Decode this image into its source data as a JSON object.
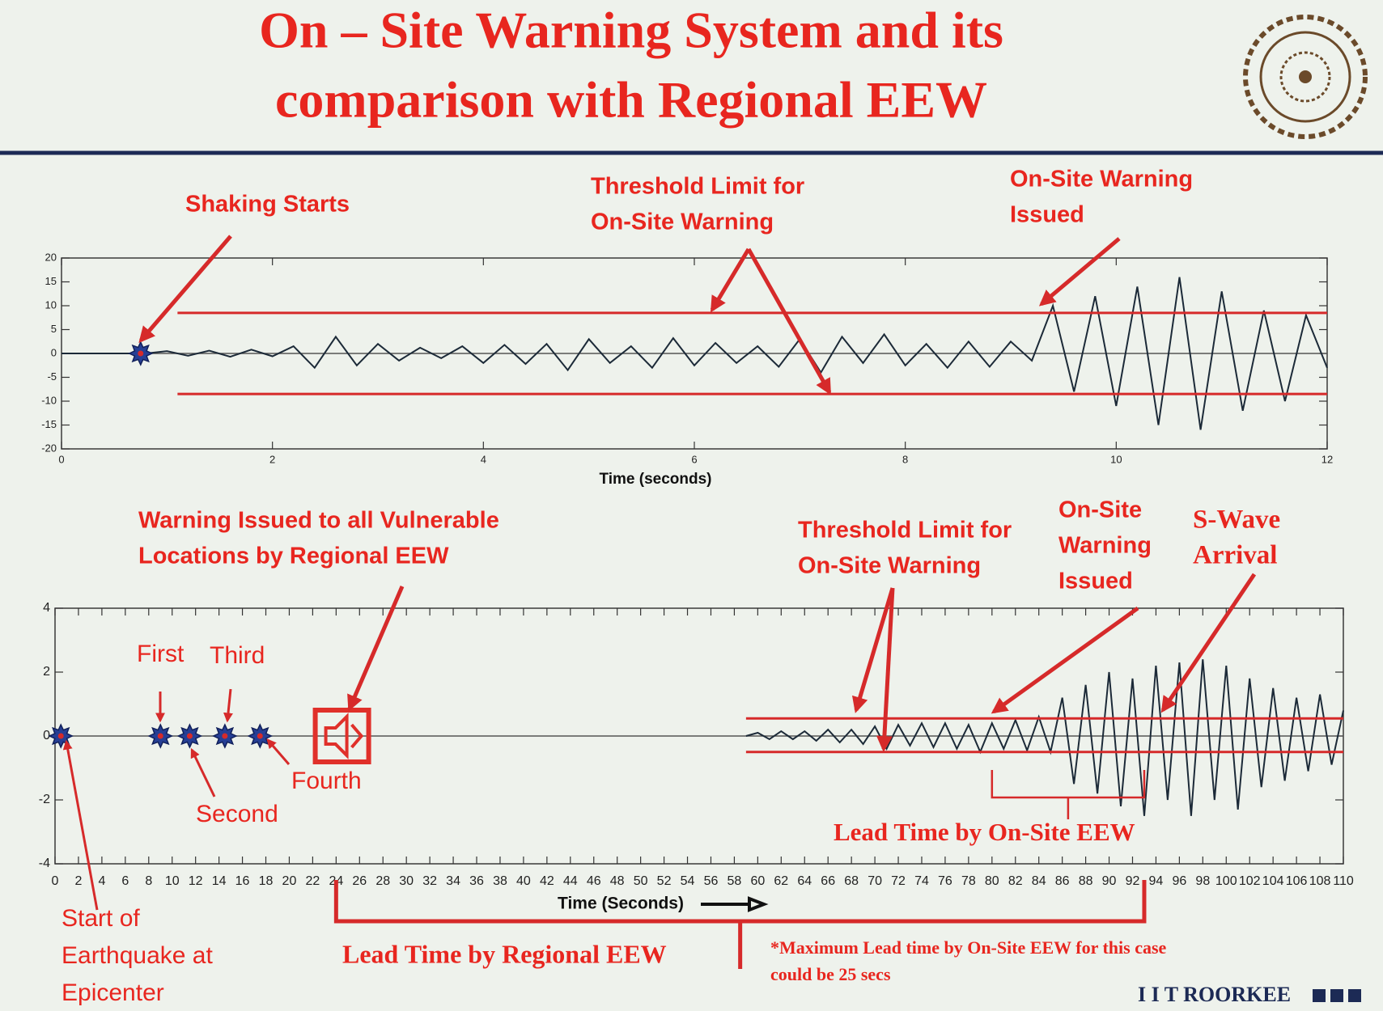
{
  "header": {
    "title": [
      "On – Site Warning System and its",
      "comparison with Regional EEW"
    ]
  },
  "chart_data": [
    {
      "type": "line",
      "xlabel": "Time (seconds)",
      "xlim": [
        0,
        12
      ],
      "xticks": [
        0,
        2,
        4,
        6,
        8,
        10,
        12
      ],
      "ylim": [
        -20,
        20
      ],
      "yticks": [
        -20,
        -15,
        -10,
        -5,
        0,
        5,
        10,
        15,
        20
      ],
      "color": "#1c2a38",
      "threshold_color": "#d62a2a",
      "thresholds": [
        8.5,
        -8.5
      ],
      "threshold_start": 1.1,
      "x": [
        0,
        0.2,
        0.4,
        0.6,
        0.8,
        1,
        1.2,
        1.4,
        1.6,
        1.8,
        2,
        2.2,
        2.4,
        2.6,
        2.8,
        3,
        3.2,
        3.4,
        3.6,
        3.8,
        4,
        4.2,
        4.4,
        4.6,
        4.8,
        5,
        5.2,
        5.4,
        5.6,
        5.8,
        6,
        6.2,
        6.4,
        6.6,
        6.8,
        7,
        7.2,
        7.4,
        7.6,
        7.8,
        8,
        8.2,
        8.4,
        8.6,
        8.8,
        9,
        9.2,
        9.4,
        9.6,
        9.8,
        10,
        10.2,
        10.4,
        10.6,
        10.8,
        11,
        11.2,
        11.4,
        11.6,
        11.8,
        12
      ],
      "values": [
        0,
        0,
        0,
        0,
        0,
        0.5,
        -0.5,
        0.6,
        -0.7,
        0.8,
        -0.6,
        1.5,
        -3,
        3.5,
        -2.5,
        2,
        -1.5,
        1.2,
        -1,
        1.5,
        -2,
        1.8,
        -2.2,
        2,
        -3.5,
        3,
        -2,
        1.5,
        -3,
        3.2,
        -2.5,
        2.2,
        -2,
        1.5,
        -2.8,
        3,
        -4,
        3.5,
        -2,
        4,
        -2.5,
        2,
        -3,
        2.5,
        -2.8,
        2.5,
        -1.5,
        10,
        -8,
        12,
        -11,
        14,
        -15,
        16,
        -16,
        13,
        -12,
        9,
        -10,
        8,
        -3
      ],
      "markers": [
        {
          "x": 0.75,
          "y": 0
        }
      ],
      "annotations": [
        [
          "Shaking Starts"
        ],
        [
          "Threshold Limit for",
          "On-Site Warning"
        ],
        [
          "On-Site Warning",
          "Issued"
        ]
      ]
    },
    {
      "type": "line",
      "xlabel": "Time (Seconds)",
      "xlim": [
        0,
        110
      ],
      "xticks": [
        0,
        2,
        4,
        6,
        8,
        10,
        12,
        14,
        16,
        18,
        20,
        22,
        24,
        26,
        28,
        30,
        32,
        34,
        36,
        38,
        40,
        42,
        44,
        46,
        48,
        50,
        52,
        54,
        56,
        58,
        60,
        62,
        64,
        66,
        68,
        70,
        72,
        74,
        76,
        78,
        80,
        82,
        84,
        86,
        88,
        90,
        92,
        94,
        96,
        98,
        100,
        102,
        104,
        106,
        108,
        110
      ],
      "ylim": [
        -4,
        4
      ],
      "yticks": [
        -4,
        -2,
        0,
        2,
        4
      ],
      "color": "#1c2a38",
      "threshold_color": "#d62a2a",
      "thresholds": [
        0.55,
        -0.5
      ],
      "threshold_start": 59,
      "x": [
        59,
        60,
        61,
        62,
        63,
        64,
        65,
        66,
        67,
        68,
        69,
        70,
        71,
        72,
        73,
        74,
        75,
        76,
        77,
        78,
        79,
        80,
        81,
        82,
        83,
        84,
        85,
        86,
        87,
        88,
        89,
        90,
        91,
        92,
        93,
        94,
        95,
        96,
        97,
        98,
        99,
        100,
        101,
        102,
        103,
        104,
        105,
        106,
        107,
        108,
        109,
        110
      ],
      "values": [
        0,
        0.1,
        -0.1,
        0.15,
        -0.1,
        0.15,
        -0.15,
        0.2,
        -0.2,
        0.2,
        -0.25,
        0.3,
        -0.4,
        0.35,
        -0.3,
        0.4,
        -0.35,
        0.4,
        -0.4,
        0.35,
        -0.5,
        0.4,
        -0.4,
        0.5,
        -0.45,
        0.6,
        -0.5,
        1.2,
        -1.5,
        1.6,
        -1.8,
        2,
        -2.2,
        1.8,
        -2.5,
        2.2,
        -2,
        2.3,
        -2.5,
        2.4,
        -2,
        2.2,
        -2.3,
        1.8,
        -1.6,
        1.5,
        -1.4,
        1.2,
        -1.1,
        1.3,
        -0.9,
        0.8
      ],
      "markers": [
        {
          "x": 0.5,
          "y": 0,
          "label": [
            "Start of",
            "Earthquake at",
            "Epicenter"
          ]
        },
        {
          "x": 9,
          "y": 0,
          "label": [
            "First"
          ]
        },
        {
          "x": 11.5,
          "y": 0,
          "label": [
            "Second"
          ]
        },
        {
          "x": 14.5,
          "y": 0,
          "label": [
            "Third"
          ]
        },
        {
          "x": 17.5,
          "y": 0,
          "label": [
            "Fourth"
          ]
        }
      ],
      "warning_icon_x": 24.5,
      "annotations": [
        [
          "Warning Issued to all Vulnerable",
          "Locations by Regional EEW"
        ],
        [
          "Threshold Limit for",
          "On-Site Warning"
        ],
        [
          "On-Site",
          "Warning",
          "Issued"
        ],
        [
          "S-Wave",
          "Arrival"
        ]
      ],
      "lead_times": [
        {
          "label": "Lead Time by On-Site EEW",
          "start": 80,
          "end": 93
        },
        {
          "label": "Lead Time by Regional EEW",
          "start": 24,
          "end": 93
        }
      ]
    }
  ],
  "footer": {
    "note": [
      "*Maximum Lead time by On-Site EEW for this case",
      "could be 25 secs"
    ],
    "brand": "I I T ROORKEE"
  }
}
